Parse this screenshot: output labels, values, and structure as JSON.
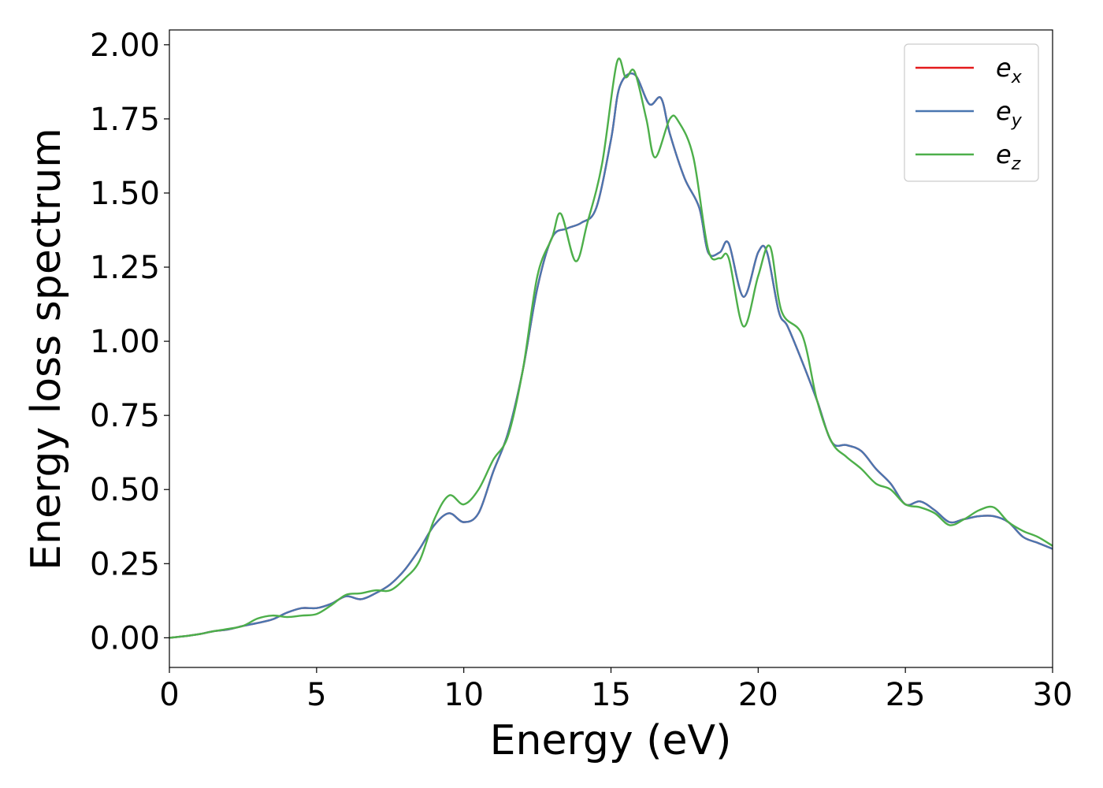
{
  "chart_data": {
    "type": "line",
    "xlabel": "Energy (eV)",
    "ylabel": "Energy loss spectrum",
    "xlim": [
      0,
      30
    ],
    "ylim": [
      -0.1,
      2.05
    ],
    "x_ticks": [
      0,
      5,
      10,
      15,
      20,
      25,
      30
    ],
    "x_tick_labels": [
      "0",
      "5",
      "10",
      "15",
      "20",
      "25",
      "30"
    ],
    "y_ticks": [
      0,
      0.25,
      0.5,
      0.75,
      1.0,
      1.25,
      1.5,
      1.75,
      2.0
    ],
    "y_tick_labels": [
      "0.00",
      "0.25",
      "0.50",
      "0.75",
      "1.00",
      "1.25",
      "1.50",
      "1.75",
      "2.00"
    ],
    "grid": false,
    "legend_position": "top-right",
    "series": [
      {
        "name": "e",
        "subscript": "x",
        "color": "#e41a1c",
        "x": [
          0,
          0.5,
          1,
          1.5,
          2,
          2.5,
          3,
          3.5,
          4,
          4.5,
          5,
          5.5,
          6,
          6.5,
          7,
          7.5,
          8,
          8.5,
          9,
          9.5,
          10,
          10.5,
          11,
          11.5,
          12,
          12.5,
          13,
          13.5,
          14,
          14.5,
          15,
          15.3,
          15.8,
          16.3,
          16.7,
          17,
          17.5,
          18,
          18.3,
          18.7,
          19,
          19.5,
          20,
          20.3,
          20.7,
          21,
          21.5,
          22,
          22.5,
          23,
          23.5,
          24,
          24.5,
          25,
          25.5,
          26,
          26.5,
          27,
          27.5,
          28,
          28.5,
          29,
          29.5,
          30
        ],
        "y": [
          0,
          0.005,
          0.012,
          0.022,
          0.028,
          0.04,
          0.05,
          0.062,
          0.085,
          0.1,
          0.1,
          0.115,
          0.14,
          0.13,
          0.15,
          0.18,
          0.23,
          0.3,
          0.38,
          0.42,
          0.39,
          0.42,
          0.56,
          0.69,
          0.9,
          1.18,
          1.35,
          1.38,
          1.4,
          1.45,
          1.68,
          1.86,
          1.9,
          1.8,
          1.82,
          1.7,
          1.55,
          1.45,
          1.3,
          1.3,
          1.33,
          1.15,
          1.3,
          1.3,
          1.1,
          1.05,
          0.93,
          0.8,
          0.66,
          0.65,
          0.63,
          0.57,
          0.52,
          0.45,
          0.46,
          0.43,
          0.39,
          0.4,
          0.41,
          0.41,
          0.39,
          0.34,
          0.32,
          0.3
        ]
      },
      {
        "name": "e",
        "subscript": "y",
        "color": "#4a76b0",
        "x": [
          0,
          0.5,
          1,
          1.5,
          2,
          2.5,
          3,
          3.5,
          4,
          4.5,
          5,
          5.5,
          6,
          6.5,
          7,
          7.5,
          8,
          8.5,
          9,
          9.5,
          10,
          10.5,
          11,
          11.5,
          12,
          12.5,
          13,
          13.5,
          14,
          14.5,
          15,
          15.3,
          15.8,
          16.3,
          16.7,
          17,
          17.5,
          18,
          18.3,
          18.7,
          19,
          19.5,
          20,
          20.3,
          20.7,
          21,
          21.5,
          22,
          22.5,
          23,
          23.5,
          24,
          24.5,
          25,
          25.5,
          26,
          26.5,
          27,
          27.5,
          28,
          28.5,
          29,
          29.5,
          30
        ],
        "y": [
          0,
          0.005,
          0.012,
          0.022,
          0.028,
          0.04,
          0.05,
          0.062,
          0.085,
          0.1,
          0.1,
          0.115,
          0.14,
          0.13,
          0.15,
          0.18,
          0.23,
          0.3,
          0.38,
          0.42,
          0.39,
          0.42,
          0.56,
          0.69,
          0.9,
          1.18,
          1.35,
          1.38,
          1.4,
          1.45,
          1.68,
          1.86,
          1.9,
          1.8,
          1.82,
          1.7,
          1.55,
          1.45,
          1.3,
          1.3,
          1.33,
          1.15,
          1.3,
          1.3,
          1.1,
          1.05,
          0.93,
          0.8,
          0.66,
          0.65,
          0.63,
          0.57,
          0.52,
          0.45,
          0.46,
          0.43,
          0.39,
          0.4,
          0.41,
          0.41,
          0.39,
          0.34,
          0.32,
          0.3
        ]
      },
      {
        "name": "e",
        "subscript": "z",
        "color": "#4daf4a",
        "x": [
          0,
          0.5,
          1,
          1.5,
          2,
          2.5,
          3,
          3.5,
          4,
          4.5,
          5,
          5.5,
          6,
          6.5,
          7,
          7.5,
          8,
          8.5,
          9,
          9.5,
          10,
          10.5,
          11,
          11.5,
          12,
          12.5,
          13,
          13.3,
          13.8,
          14.2,
          14.7,
          15.2,
          15.5,
          15.8,
          16.2,
          16.5,
          17,
          17.3,
          17.8,
          18.3,
          18.7,
          19,
          19.5,
          20,
          20.4,
          20.8,
          21.5,
          22,
          22.5,
          23,
          23.5,
          24,
          24.5,
          25,
          25.5,
          26,
          26.5,
          27,
          27.5,
          28,
          28.5,
          29,
          29.5,
          30
        ],
        "y": [
          0,
          0.005,
          0.012,
          0.022,
          0.03,
          0.04,
          0.065,
          0.075,
          0.07,
          0.075,
          0.08,
          0.11,
          0.145,
          0.15,
          0.16,
          0.16,
          0.2,
          0.26,
          0.4,
          0.48,
          0.45,
          0.5,
          0.6,
          0.68,
          0.9,
          1.22,
          1.35,
          1.43,
          1.27,
          1.4,
          1.6,
          1.94,
          1.89,
          1.91,
          1.75,
          1.62,
          1.75,
          1.74,
          1.62,
          1.31,
          1.28,
          1.28,
          1.05,
          1.22,
          1.32,
          1.1,
          1.02,
          0.8,
          0.66,
          0.61,
          0.57,
          0.52,
          0.5,
          0.45,
          0.44,
          0.42,
          0.38,
          0.4,
          0.43,
          0.44,
          0.39,
          0.36,
          0.34,
          0.31
        ]
      }
    ]
  }
}
